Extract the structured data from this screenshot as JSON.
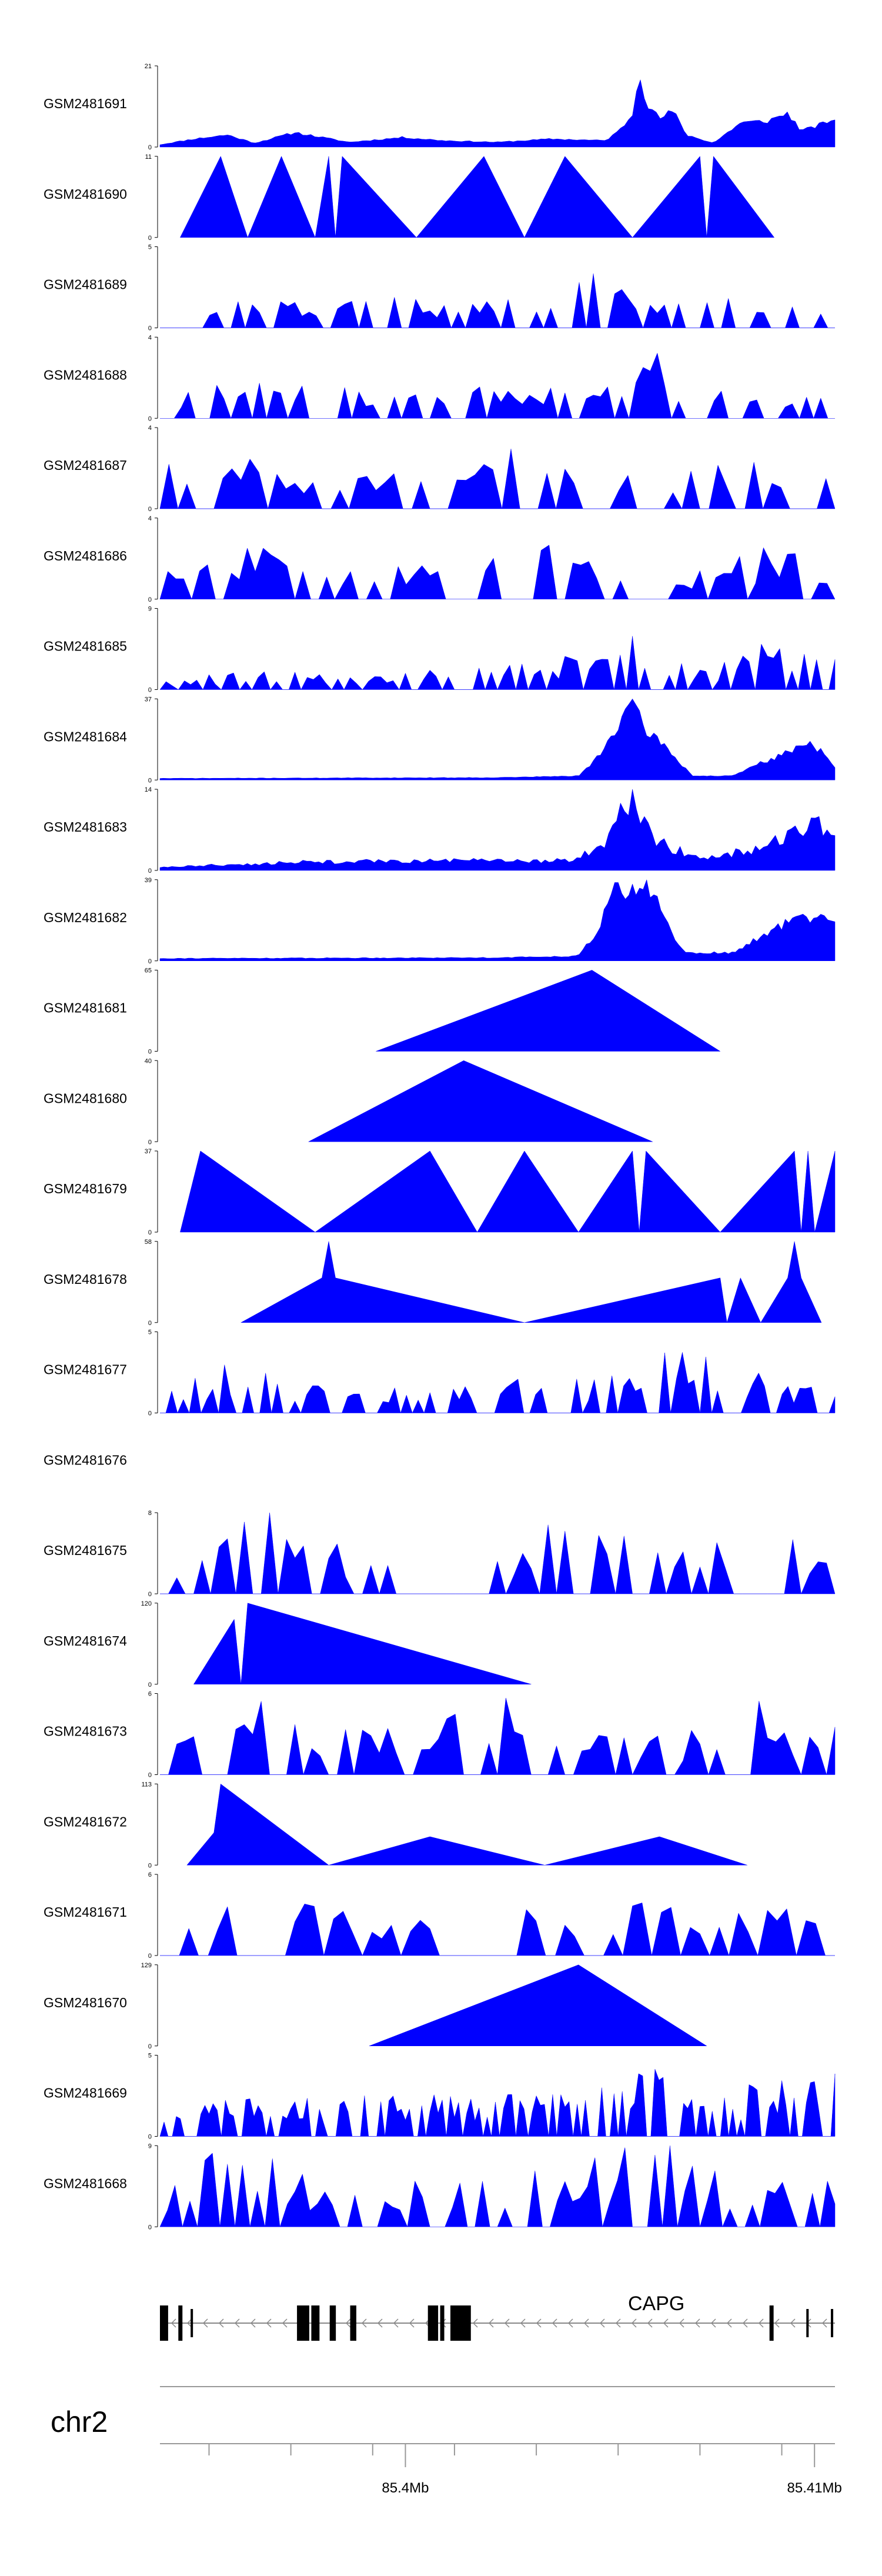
{
  "chart_data": {
    "type": "area",
    "chromosome": "chr2",
    "x_range_mb": [
      85.394,
      85.4105
    ],
    "x_ticks": [
      {
        "value": 85.4,
        "label": "85.4Mb"
      },
      {
        "value": 85.41,
        "label": "85.41Mb"
      }
    ],
    "minor_ticks": [
      85.3952,
      85.3972,
      85.3992,
      85.4012,
      85.4032,
      85.4052,
      85.4072,
      85.4092,
      85.4112
    ],
    "gene": {
      "name": "CAPG",
      "strand": "-",
      "start": 85.394,
      "end": 85.4105,
      "exons": [
        [
          85.394,
          85.3942
        ],
        [
          85.39445,
          85.39455
        ],
        [
          85.39475,
          85.3948
        ],
        [
          85.39735,
          85.39765
        ],
        [
          85.3977,
          85.3979
        ],
        [
          85.39815,
          85.3983
        ],
        [
          85.39865,
          85.3988
        ],
        [
          85.40055,
          85.4008
        ],
        [
          85.40085,
          85.40095
        ],
        [
          85.4011,
          85.4016
        ],
        [
          85.4089,
          85.409
        ],
        [
          85.4098,
          85.40985
        ],
        [
          85.4104,
          85.41045
        ]
      ]
    },
    "series": [
      {
        "name": "GSM2481691",
        "ymax": 21,
        "anchors": [
          [
            0.0,
            0.03
          ],
          [
            0.05,
            0.1
          ],
          [
            0.1,
            0.15
          ],
          [
            0.14,
            0.05
          ],
          [
            0.2,
            0.18
          ],
          [
            0.28,
            0.06
          ],
          [
            0.36,
            0.12
          ],
          [
            0.42,
            0.08
          ],
          [
            0.5,
            0.06
          ],
          [
            0.58,
            0.1
          ],
          [
            0.66,
            0.08
          ],
          [
            0.68,
            0.2
          ],
          [
            0.7,
            0.4
          ],
          [
            0.71,
            1.0
          ],
          [
            0.72,
            0.55
          ],
          [
            0.74,
            0.35
          ],
          [
            0.76,
            0.45
          ],
          [
            0.78,
            0.15
          ],
          [
            0.82,
            0.05
          ],
          [
            0.86,
            0.3
          ],
          [
            0.9,
            0.32
          ],
          [
            0.93,
            0.42
          ],
          [
            0.95,
            0.2
          ],
          [
            0.97,
            0.25
          ],
          [
            1.0,
            0.35
          ]
        ],
        "noise": 0.1,
        "density": 170,
        "seed": 11
      },
      {
        "name": "GSM2481690",
        "ymax": 11,
        "points": [
          [
            0.03,
            0.0
          ],
          [
            0.09,
            1.0
          ],
          [
            0.13,
            0.0
          ],
          [
            0.18,
            1.0
          ],
          [
            0.23,
            0.0
          ],
          [
            0.25,
            1.0
          ],
          [
            0.26,
            0.0
          ],
          [
            0.27,
            1.0
          ],
          [
            0.38,
            0.0
          ],
          [
            0.48,
            1.0
          ],
          [
            0.54,
            0.0
          ],
          [
            0.6,
            1.0
          ],
          [
            0.7,
            0.0
          ],
          [
            0.8,
            1.0
          ],
          [
            0.81,
            0.0
          ],
          [
            0.82,
            1.0
          ],
          [
            0.91,
            0.0
          ]
        ]
      },
      {
        "name": "GSM2481689",
        "ymax": 5,
        "anchors": [
          [
            0.0,
            0.25
          ],
          [
            0.15,
            0.3
          ],
          [
            0.3,
            0.3
          ],
          [
            0.45,
            0.3
          ],
          [
            0.55,
            0.35
          ],
          [
            0.6,
            0.45
          ],
          [
            0.66,
            0.6
          ],
          [
            0.68,
            0.7
          ],
          [
            0.7,
            0.4
          ],
          [
            0.75,
            0.35
          ],
          [
            0.85,
            0.3
          ],
          [
            1.0,
            0.25
          ]
        ],
        "noise": 0.35,
        "density": 95,
        "spiky": true,
        "seed": 21
      },
      {
        "name": "GSM2481688",
        "ymax": 4,
        "anchors": [
          [
            0.0,
            0.3
          ],
          [
            0.2,
            0.35
          ],
          [
            0.4,
            0.3
          ],
          [
            0.6,
            0.35
          ],
          [
            0.7,
            0.4
          ],
          [
            0.73,
            0.95
          ],
          [
            0.76,
            0.35
          ],
          [
            1.0,
            0.25
          ]
        ],
        "noise": 0.35,
        "density": 95,
        "spiky": true,
        "seed": 31
      },
      {
        "name": "GSM2481687",
        "ymax": 4,
        "anchors": [
          [
            0.0,
            0.45
          ],
          [
            0.1,
            0.5
          ],
          [
            0.3,
            0.35
          ],
          [
            0.5,
            0.45
          ],
          [
            0.55,
            1.0
          ],
          [
            0.57,
            0.45
          ],
          [
            0.8,
            0.45
          ],
          [
            1.0,
            0.45
          ]
        ],
        "noise": 0.3,
        "density": 75,
        "spiky": true,
        "seed": 41
      },
      {
        "name": "GSM2481686",
        "ymax": 4,
        "anchors": [
          [
            0.0,
            0.3
          ],
          [
            0.14,
            0.55
          ],
          [
            0.2,
            0.4
          ],
          [
            0.4,
            0.45
          ],
          [
            0.58,
            0.55
          ],
          [
            0.62,
            0.5
          ],
          [
            0.8,
            0.3
          ],
          [
            0.9,
            0.5
          ],
          [
            1.0,
            0.45
          ]
        ],
        "noise": 0.35,
        "density": 85,
        "spiky": true,
        "seed": 51
      },
      {
        "name": "GSM2481685",
        "ymax": 9,
        "anchors": [
          [
            0.0,
            0.1
          ],
          [
            0.15,
            0.2
          ],
          [
            0.3,
            0.15
          ],
          [
            0.5,
            0.25
          ],
          [
            0.62,
            0.35
          ],
          [
            0.7,
            0.6
          ],
          [
            0.75,
            0.35
          ],
          [
            0.8,
            0.2
          ],
          [
            0.88,
            0.4
          ],
          [
            0.92,
            0.6
          ],
          [
            1.0,
            0.35
          ]
        ],
        "noise": 0.35,
        "density": 110,
        "spiky": true,
        "seed": 61
      },
      {
        "name": "GSM2481684",
        "ymax": 37,
        "anchors": [
          [
            0.0,
            0.02
          ],
          [
            0.5,
            0.03
          ],
          [
            0.62,
            0.05
          ],
          [
            0.64,
            0.2
          ],
          [
            0.67,
            0.55
          ],
          [
            0.69,
            0.85
          ],
          [
            0.7,
            0.95
          ],
          [
            0.72,
            0.6
          ],
          [
            0.74,
            0.5
          ],
          [
            0.76,
            0.3
          ],
          [
            0.79,
            0.05
          ],
          [
            0.85,
            0.05
          ],
          [
            0.88,
            0.18
          ],
          [
            0.92,
            0.3
          ],
          [
            0.96,
            0.48
          ],
          [
            0.98,
            0.35
          ],
          [
            1.0,
            0.15
          ]
        ],
        "noise": 0.12,
        "density": 190,
        "seed": 71
      },
      {
        "name": "GSM2481683",
        "ymax": 14,
        "anchors": [
          [
            0.0,
            0.04
          ],
          [
            0.2,
            0.1
          ],
          [
            0.4,
            0.12
          ],
          [
            0.6,
            0.12
          ],
          [
            0.66,
            0.3
          ],
          [
            0.69,
            0.8
          ],
          [
            0.7,
            0.95
          ],
          [
            0.72,
            0.5
          ],
          [
            0.75,
            0.3
          ],
          [
            0.8,
            0.15
          ],
          [
            0.88,
            0.25
          ],
          [
            0.94,
            0.45
          ],
          [
            0.97,
            0.6
          ],
          [
            1.0,
            0.35
          ]
        ],
        "noise": 0.25,
        "density": 170,
        "seed": 81
      },
      {
        "name": "GSM2481682",
        "ymax": 39,
        "anchors": [
          [
            0.0,
            0.03
          ],
          [
            0.5,
            0.04
          ],
          [
            0.62,
            0.06
          ],
          [
            0.65,
            0.4
          ],
          [
            0.67,
            0.9
          ],
          [
            0.69,
            0.8
          ],
          [
            0.72,
            0.95
          ],
          [
            0.74,
            0.7
          ],
          [
            0.76,
            0.3
          ],
          [
            0.78,
            0.1
          ],
          [
            0.85,
            0.1
          ],
          [
            0.9,
            0.35
          ],
          [
            0.95,
            0.55
          ],
          [
            1.0,
            0.5
          ]
        ],
        "noise": 0.14,
        "density": 190,
        "seed": 91
      },
      {
        "name": "GSM2481681",
        "ymax": 65,
        "points": [
          [
            0.32,
            0.0
          ],
          [
            0.64,
            1.0
          ],
          [
            0.83,
            0.0
          ]
        ]
      },
      {
        "name": "GSM2481680",
        "ymax": 40,
        "points": [
          [
            0.22,
            0.0
          ],
          [
            0.45,
            1.0
          ],
          [
            0.73,
            0.0
          ]
        ]
      },
      {
        "name": "GSM2481679",
        "ymax": 37,
        "points": [
          [
            0.03,
            0.0
          ],
          [
            0.06,
            1.0
          ],
          [
            0.23,
            0.0
          ],
          [
            0.4,
            1.0
          ],
          [
            0.47,
            0.0
          ],
          [
            0.54,
            1.0
          ],
          [
            0.62,
            0.0
          ],
          [
            0.7,
            1.0
          ],
          [
            0.71,
            0.0
          ],
          [
            0.72,
            1.0
          ],
          [
            0.83,
            0.0
          ],
          [
            0.94,
            1.0
          ],
          [
            0.95,
            0.0
          ],
          [
            0.96,
            1.0
          ],
          [
            0.97,
            0.0
          ],
          [
            1.0,
            1.0
          ]
        ]
      },
      {
        "name": "GSM2481678",
        "ymax": 58,
        "points": [
          [
            0.12,
            0.0
          ],
          [
            0.24,
            0.55
          ],
          [
            0.25,
            1.0
          ],
          [
            0.26,
            0.55
          ],
          [
            0.54,
            0.0
          ],
          [
            0.83,
            0.55
          ],
          [
            0.84,
            0.0
          ],
          [
            0.86,
            0.55
          ],
          [
            0.89,
            0.0
          ],
          [
            0.93,
            0.55
          ],
          [
            0.94,
            1.0
          ],
          [
            0.95,
            0.55
          ],
          [
            0.98,
            0.0
          ]
        ]
      },
      {
        "name": "GSM2481677",
        "ymax": 5,
        "anchors": [
          [
            0.0,
            0.2
          ],
          [
            0.13,
            0.55
          ],
          [
            0.2,
            0.3
          ],
          [
            0.4,
            0.25
          ],
          [
            0.55,
            0.35
          ],
          [
            0.7,
            0.4
          ],
          [
            0.8,
            0.9
          ],
          [
            0.82,
            0.6
          ],
          [
            0.9,
            0.35
          ],
          [
            1.0,
            0.2
          ]
        ],
        "noise": 0.35,
        "density": 115,
        "spiky": true,
        "seed": 111
      },
      {
        "name": "GSM2481676",
        "ymax": null,
        "empty": true
      },
      {
        "name": "GSM2481675",
        "ymax": 8,
        "anchors": [
          [
            0.0,
            0.3
          ],
          [
            0.1,
            0.6
          ],
          [
            0.16,
            0.9
          ],
          [
            0.3,
            0.35
          ],
          [
            0.4,
            0.3
          ],
          [
            0.5,
            0.55
          ],
          [
            0.58,
            0.7
          ],
          [
            0.7,
            0.6
          ],
          [
            0.8,
            0.55
          ],
          [
            0.9,
            0.5
          ],
          [
            1.0,
            0.6
          ]
        ],
        "noise": 0.3,
        "density": 80,
        "spiky": true,
        "seed": 121
      },
      {
        "name": "GSM2481674",
        "ymax": 120,
        "points": [
          [
            0.05,
            0.0
          ],
          [
            0.11,
            0.8
          ],
          [
            0.12,
            0.0
          ],
          [
            0.13,
            1.0
          ],
          [
            0.55,
            0.0
          ]
        ]
      },
      {
        "name": "GSM2481673",
        "ymax": 6,
        "anchors": [
          [
            0.0,
            0.4
          ],
          [
            0.1,
            0.55
          ],
          [
            0.18,
            0.95
          ],
          [
            0.25,
            0.5
          ],
          [
            0.4,
            0.45
          ],
          [
            0.49,
            0.9
          ],
          [
            0.55,
            0.45
          ],
          [
            0.7,
            0.4
          ],
          [
            0.85,
            0.45
          ],
          [
            0.88,
            0.95
          ],
          [
            0.92,
            0.5
          ],
          [
            1.0,
            0.5
          ]
        ],
        "noise": 0.3,
        "density": 80,
        "spiky": true,
        "seed": 131
      },
      {
        "name": "GSM2481672",
        "ymax": 113,
        "points": [
          [
            0.04,
            0.0
          ],
          [
            0.08,
            0.4
          ],
          [
            0.09,
            1.0
          ],
          [
            0.25,
            0.0
          ],
          [
            0.4,
            0.35
          ],
          [
            0.57,
            0.0
          ],
          [
            0.74,
            0.35
          ],
          [
            0.87,
            0.0
          ]
        ]
      },
      {
        "name": "GSM2481671",
        "ymax": 6,
        "anchors": [
          [
            0.0,
            0.4
          ],
          [
            0.1,
            0.55
          ],
          [
            0.12,
            0.95
          ],
          [
            0.2,
            0.5
          ],
          [
            0.4,
            0.5
          ],
          [
            0.6,
            0.5
          ],
          [
            0.8,
            0.5
          ],
          [
            0.9,
            0.5
          ],
          [
            1.0,
            0.45
          ]
        ],
        "noise": 0.25,
        "density": 70,
        "spiky": true,
        "seed": 141
      },
      {
        "name": "GSM2481670",
        "ymax": 129,
        "points": [
          [
            0.31,
            0.0
          ],
          [
            0.62,
            1.0
          ],
          [
            0.81,
            0.0
          ]
        ]
      },
      {
        "name": "GSM2481669",
        "ymax": 5,
        "anchors": [
          [
            0.0,
            0.3
          ],
          [
            0.2,
            0.4
          ],
          [
            0.4,
            0.4
          ],
          [
            0.6,
            0.4
          ],
          [
            0.68,
            0.55
          ],
          [
            0.72,
            0.7
          ],
          [
            0.8,
            0.4
          ],
          [
            0.88,
            0.5
          ],
          [
            0.96,
            0.6
          ],
          [
            1.0,
            0.6
          ]
        ],
        "noise": 0.35,
        "density": 165,
        "spiky": true,
        "seed": 151
      },
      {
        "name": "GSM2481668",
        "ymax": 9,
        "anchors": [
          [
            0.0,
            0.4
          ],
          [
            0.12,
            0.95
          ],
          [
            0.2,
            0.5
          ],
          [
            0.4,
            0.5
          ],
          [
            0.6,
            0.55
          ],
          [
            0.76,
            0.95
          ],
          [
            0.8,
            0.55
          ],
          [
            1.0,
            0.55
          ]
        ],
        "noise": 0.35,
        "density": 90,
        "spiky": true,
        "seed": 161
      }
    ]
  }
}
